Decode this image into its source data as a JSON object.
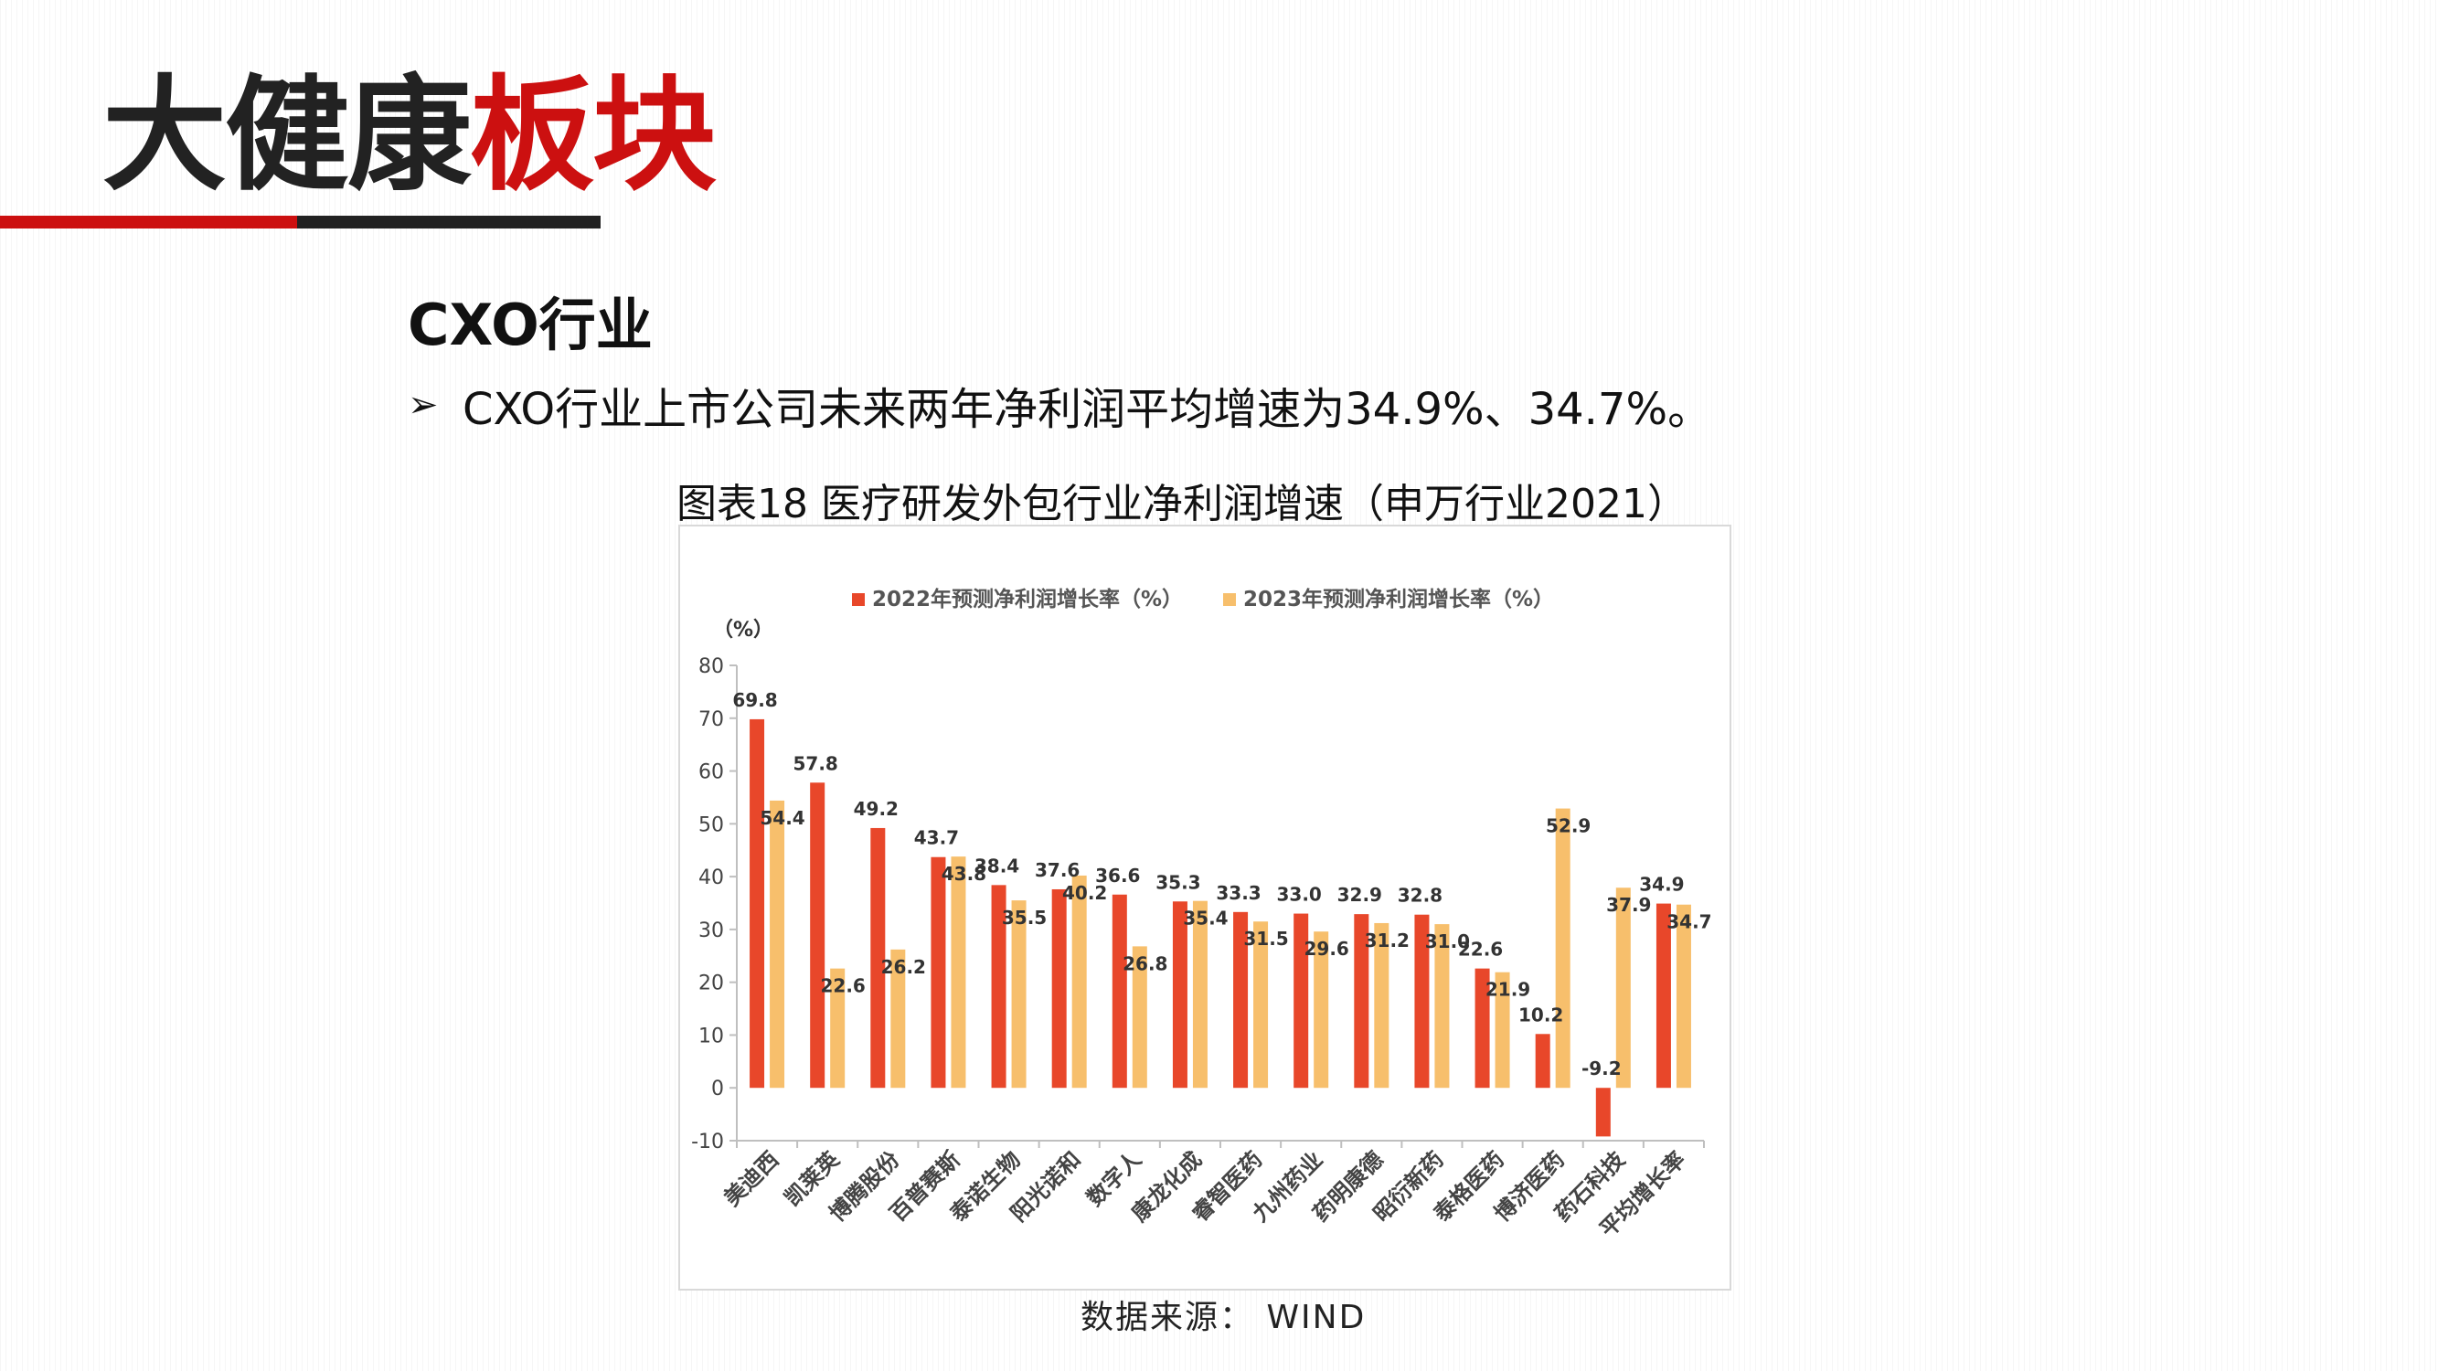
{
  "header": {
    "title_dark": "大健康",
    "title_red": "板块",
    "subtitle": "CXO行业",
    "bullet": "CXO行业上市公司未来两年净利润平均增速为34.9%、34.7%。"
  },
  "figure": {
    "caption": "图表18 医疗研发外包行业净利润增速（申万行业2021）",
    "source": "数据来源： WIND"
  },
  "colors": {
    "accent_red": "#cc1010",
    "dark": "#222222",
    "series_2022": "#e8472a",
    "series_2023": "#f7bf6c"
  },
  "chart_data": {
    "type": "bar",
    "ylabel": "（%）",
    "ylim": [
      -10,
      80
    ],
    "yticks": [
      -10,
      0,
      10,
      20,
      30,
      40,
      50,
      60,
      70,
      80
    ],
    "grid": false,
    "legend_position": "top",
    "categories": [
      "美迪西",
      "凯莱英",
      "博腾股份",
      "百普赛斯",
      "泰诺生物",
      "阳光诺和",
      "数字人",
      "康龙化成",
      "睿智医药",
      "九州药业",
      "药明康德",
      "昭衍新药",
      "泰格医药",
      "博济医药",
      "药石科技",
      "平均增长率"
    ],
    "series": [
      {
        "name": "2022年预测净利润增长率（%）",
        "values": [
          69.8,
          57.8,
          49.2,
          43.7,
          38.4,
          37.6,
          36.6,
          35.3,
          33.3,
          33.0,
          32.9,
          32.8,
          22.6,
          10.2,
          -9.2,
          34.9
        ]
      },
      {
        "name": "2023年预测净利润增长率（%）",
        "values": [
          54.4,
          22.6,
          26.2,
          43.8,
          35.5,
          40.2,
          26.8,
          35.4,
          31.5,
          29.6,
          31.2,
          31.0,
          21.9,
          52.9,
          37.9,
          34.7
        ]
      }
    ]
  }
}
